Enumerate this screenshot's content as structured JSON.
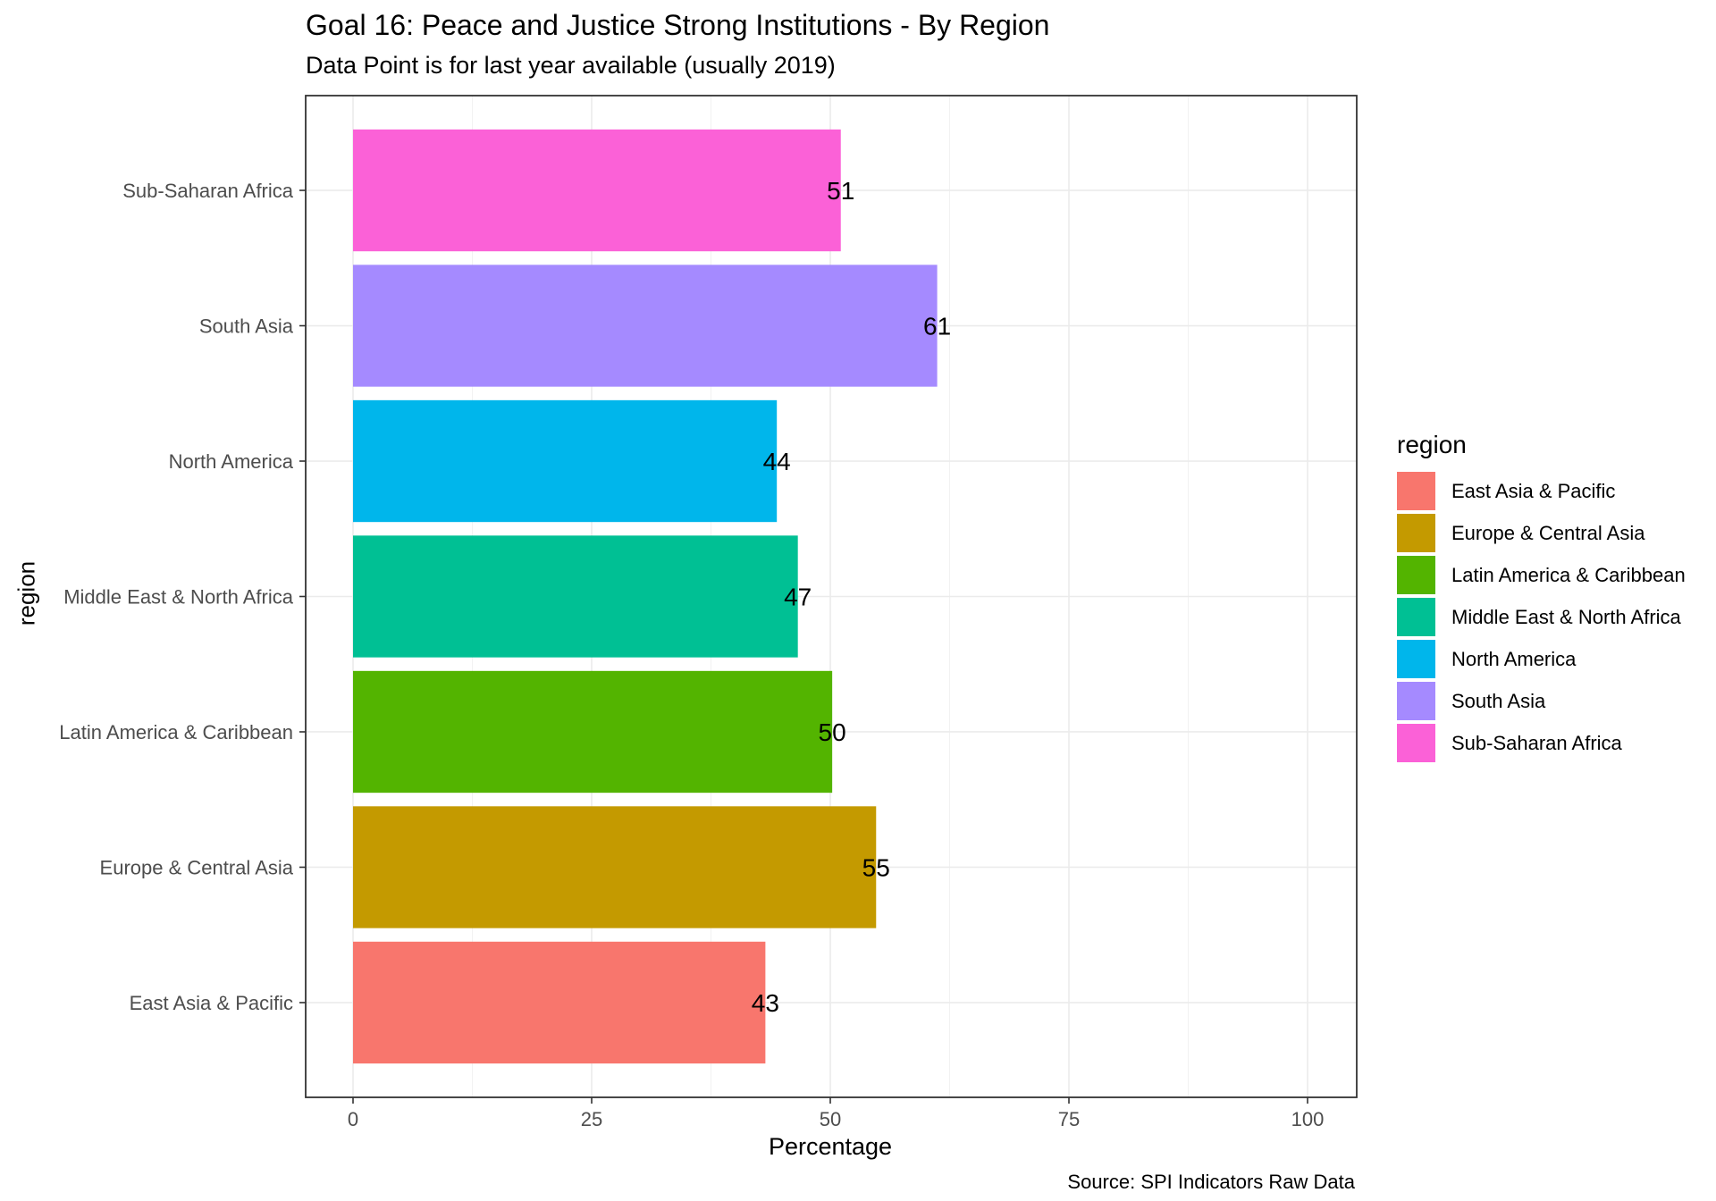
{
  "chart_data": {
    "type": "bar",
    "orientation": "horizontal",
    "title": "Goal 16: Peace and Justice Strong Institutions - By Region",
    "subtitle": "Data Point is for last year available (usually 2019)",
    "xlabel": "Percentage",
    "ylabel": "region",
    "caption": "Source: SPI Indicators Raw Data",
    "xlim": [
      0,
      100
    ],
    "x_ticks": [
      0,
      25,
      50,
      75,
      100
    ],
    "grid": true,
    "legend_title": "region",
    "legend_position": "right",
    "categories": [
      "East Asia & Pacific",
      "Europe & Central Asia",
      "Latin America & Caribbean",
      "Middle East & North Africa",
      "North America",
      "South Asia",
      "Sub-Saharan Africa"
    ],
    "values": [
      43.2,
      54.8,
      50.2,
      46.6,
      44.4,
      61.2,
      51.1
    ],
    "value_labels": [
      "43",
      "55",
      "50",
      "47",
      "44",
      "61",
      "51"
    ],
    "colors": [
      "#F8766D",
      "#C49A00",
      "#53B400",
      "#00C094",
      "#00B6EB",
      "#A58AFF",
      "#FB61D7"
    ]
  }
}
